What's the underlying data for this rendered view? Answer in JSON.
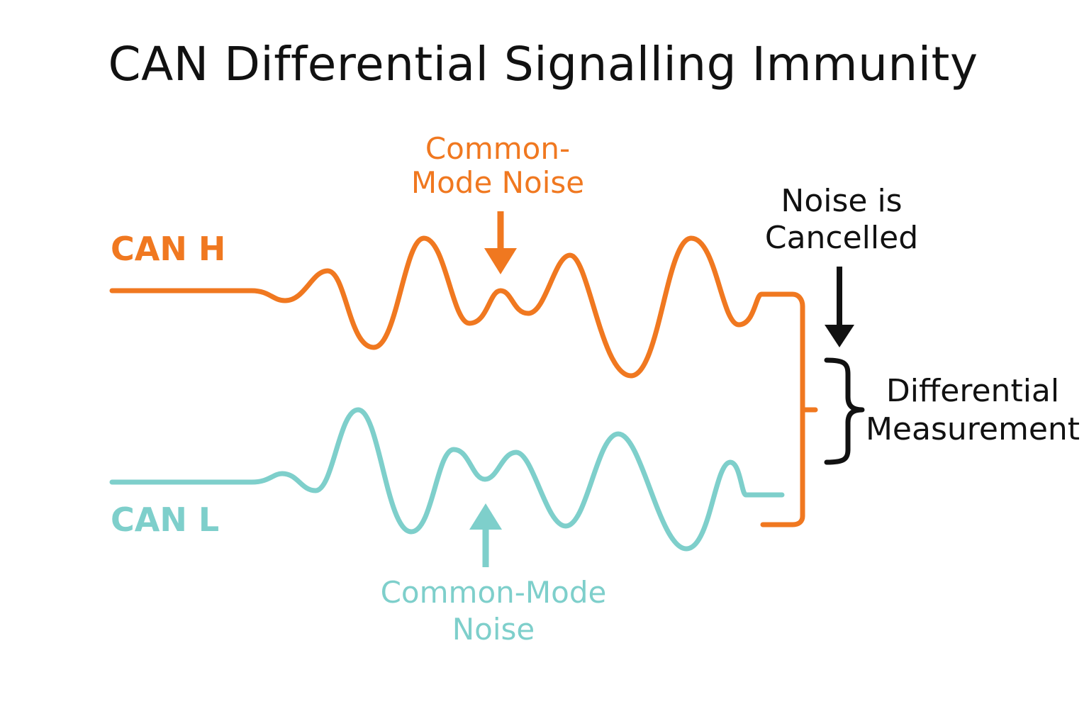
{
  "title": "CAN Differential Signalling Immunity",
  "colors": {
    "can_h": "#F07820",
    "can_l": "#7ECFCB",
    "text_dark": "#111111",
    "background": "#FFFFFF"
  },
  "signals": {
    "can_h": {
      "label": "CAN H"
    },
    "can_l": {
      "label": "CAN L"
    }
  },
  "annotations": {
    "noise_top": "Common-\nMode Noise",
    "noise_bottom": "Common-Mode\nNoise",
    "cancelled": "Noise is\nCancelled",
    "differential": "Differential\nMeasurement"
  },
  "icons": [
    "down-arrow-icon",
    "up-arrow-icon",
    "curly-brace-icon"
  ]
}
